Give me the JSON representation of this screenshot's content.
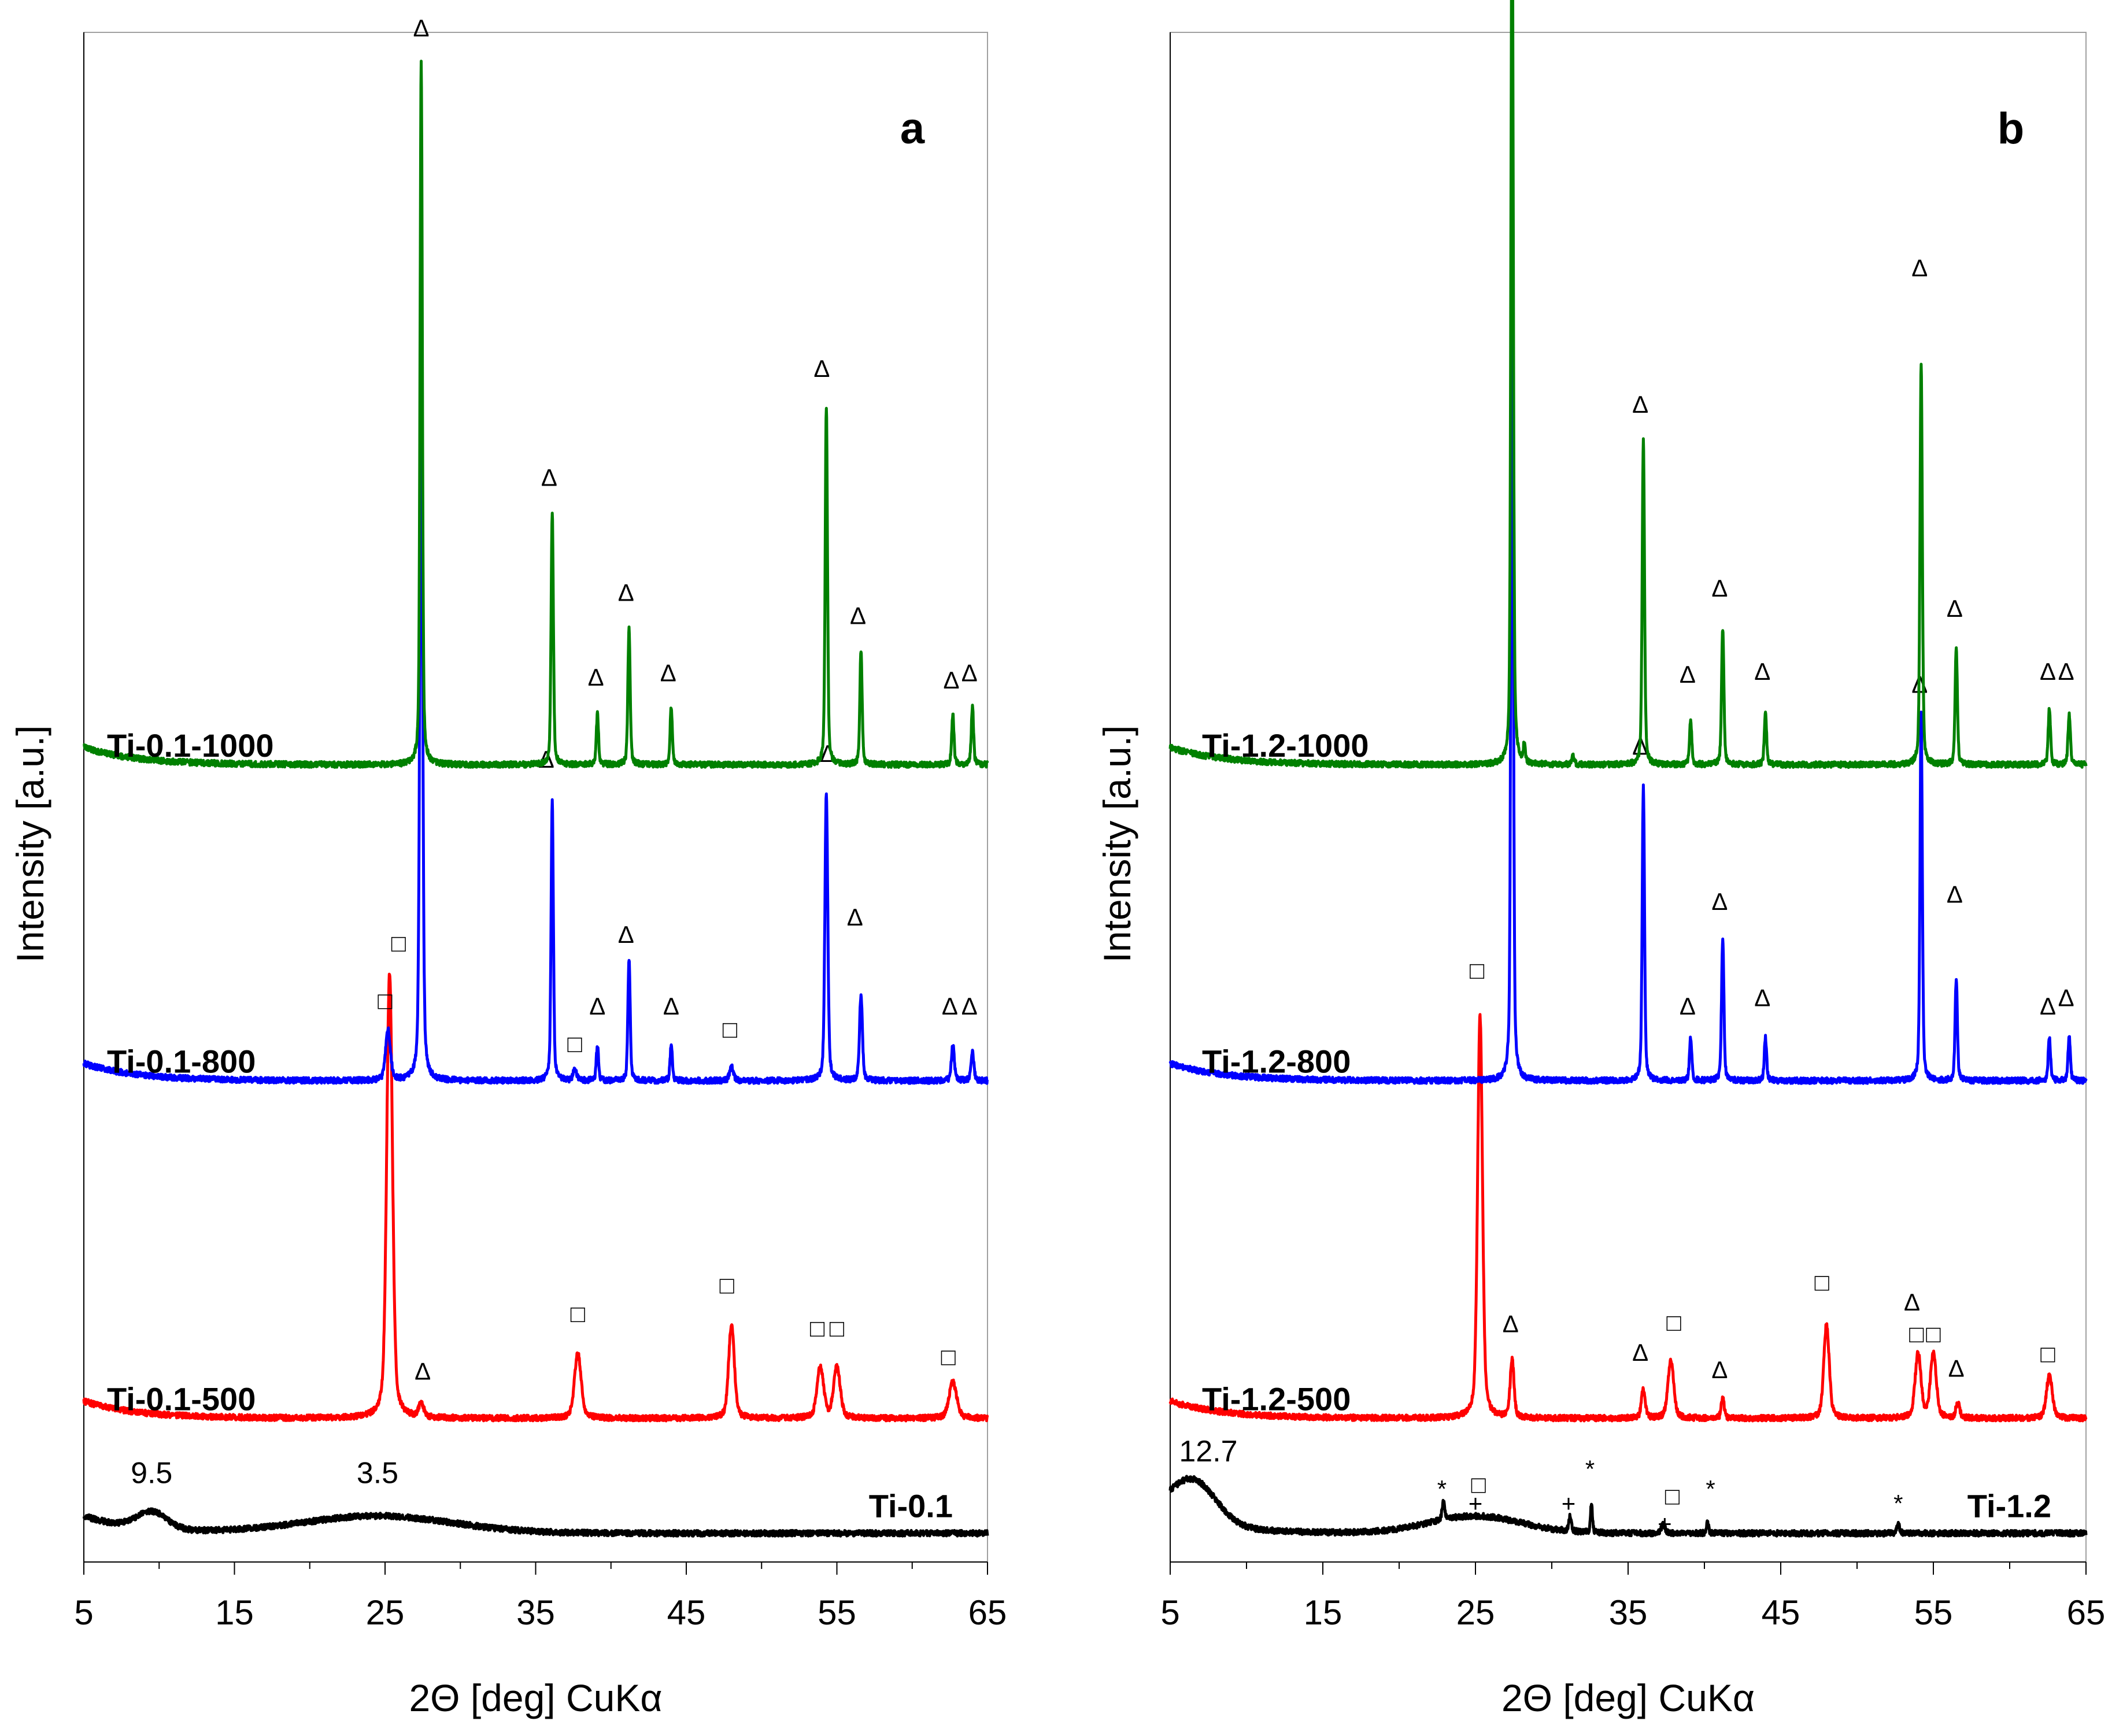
{
  "figure": {
    "description_labels": {
      "y_axis_title": "Intensity [a.u.]",
      "x_axis_title": "2Θ [deg] CuKα"
    }
  },
  "chart_data": [
    {
      "type": "line",
      "panel": "a",
      "xlabel": "2Θ [deg] CuKα",
      "ylabel": "Intensity [a.u.]",
      "xlim": [
        5,
        65
      ],
      "xticks": [
        "5",
        "15",
        "25",
        "35",
        "45",
        "55",
        "65"
      ],
      "series": [
        {
          "name": "Ti-0.1",
          "color": "#000000",
          "baseline": 0.02,
          "humps": [
            [
              9.5,
              0.012,
              1.0
            ],
            [
              24.5,
              0.012,
              5.0
            ]
          ],
          "peaks": [],
          "annotations": [
            {
              "text": "9.5",
              "x": 9.5,
              "y": 0.055
            },
            {
              "text": "3.5",
              "x": 24.5,
              "y": 0.055
            }
          ],
          "markers": []
        },
        {
          "name": "Ti-0.1-500",
          "color": "#ff0000",
          "baseline": 0.1,
          "humps": [],
          "peaks": [
            [
              25.3,
              0.31,
              0.3
            ],
            [
              27.4,
              0.01,
              0.25
            ],
            [
              37.8,
              0.045,
              0.35
            ],
            [
              48.0,
              0.065,
              0.3
            ],
            [
              53.9,
              0.035,
              0.35
            ],
            [
              55.0,
              0.035,
              0.35
            ],
            [
              62.7,
              0.025,
              0.4
            ]
          ],
          "markers": [
            {
              "symbol": "□",
              "x": 25.9,
              "y": 0.425
            },
            {
              "symbol": "Δ",
              "x": 27.5,
              "y": 0.127
            },
            {
              "symbol": "□",
              "x": 37.8,
              "y": 0.167
            },
            {
              "symbol": "□",
              "x": 47.7,
              "y": 0.187
            },
            {
              "symbol": "□",
              "x": 53.7,
              "y": 0.157
            },
            {
              "symbol": "□",
              "x": 55.0,
              "y": 0.157
            },
            {
              "symbol": "□",
              "x": 62.4,
              "y": 0.137
            }
          ]
        },
        {
          "name": "Ti-0.1-800",
          "color": "#0000ff",
          "baseline": 0.335,
          "humps": [],
          "peaks": [
            [
              25.2,
              0.035,
              0.25
            ],
            [
              27.4,
              0.5,
              0.15
            ],
            [
              36.1,
              0.195,
              0.12
            ],
            [
              37.6,
              0.007,
              0.2
            ],
            [
              39.1,
              0.024,
              0.12
            ],
            [
              41.2,
              0.085,
              0.12
            ],
            [
              44.0,
              0.025,
              0.12
            ],
            [
              48.0,
              0.01,
              0.2
            ],
            [
              54.3,
              0.2,
              0.15
            ],
            [
              56.6,
              0.06,
              0.15
            ],
            [
              62.7,
              0.025,
              0.15
            ],
            [
              64.0,
              0.02,
              0.15
            ]
          ],
          "markers": [
            {
              "symbol": "□",
              "x": 25.0,
              "y": 0.385
            },
            {
              "symbol": "Δ",
              "x": 35.7,
              "y": 0.553
            },
            {
              "symbol": "□",
              "x": 37.6,
              "y": 0.355
            },
            {
              "symbol": "Δ",
              "x": 39.1,
              "y": 0.381
            },
            {
              "symbol": "Δ",
              "x": 41.0,
              "y": 0.431
            },
            {
              "symbol": "Δ",
              "x": 44.0,
              "y": 0.381
            },
            {
              "symbol": "□",
              "x": 47.9,
              "y": 0.365
            },
            {
              "symbol": "Δ",
              "x": 54.4,
              "y": 0.557
            },
            {
              "symbol": "Δ",
              "x": 56.2,
              "y": 0.443
            },
            {
              "symbol": "Δ",
              "x": 62.5,
              "y": 0.381
            },
            {
              "symbol": "Δ",
              "x": 63.8,
              "y": 0.381
            }
          ]
        },
        {
          "name": "Ti-0.1-1000",
          "color": "#008000",
          "baseline": 0.555,
          "humps": [],
          "peaks": [
            [
              27.4,
              0.49,
              0.12
            ],
            [
              36.1,
              0.175,
              0.12
            ],
            [
              39.1,
              0.035,
              0.12
            ],
            [
              41.2,
              0.095,
              0.12
            ],
            [
              44.0,
              0.04,
              0.12
            ],
            [
              54.3,
              0.25,
              0.12
            ],
            [
              56.6,
              0.08,
              0.12
            ],
            [
              62.7,
              0.035,
              0.12
            ],
            [
              64.0,
              0.04,
              0.12
            ]
          ],
          "markers": [
            {
              "symbol": "Δ",
              "x": 27.4,
              "y": 1.062
            },
            {
              "symbol": "Δ",
              "x": 35.9,
              "y": 0.749
            },
            {
              "symbol": "Δ",
              "x": 39.0,
              "y": 0.61
            },
            {
              "symbol": "Δ",
              "x": 41.0,
              "y": 0.669
            },
            {
              "symbol": "Δ",
              "x": 43.8,
              "y": 0.613
            },
            {
              "symbol": "Δ",
              "x": 54.0,
              "y": 0.825
            },
            {
              "symbol": "Δ",
              "x": 56.4,
              "y": 0.653
            },
            {
              "symbol": "Δ",
              "x": 62.6,
              "y": 0.608
            },
            {
              "symbol": "Δ",
              "x": 63.8,
              "y": 0.613
            }
          ]
        }
      ]
    },
    {
      "type": "line",
      "panel": "b",
      "xlabel": "2Θ [deg] CuKα",
      "ylabel": "Intensity [a.u.]",
      "xlim": [
        5,
        65
      ],
      "xticks": [
        "5",
        "15",
        "25",
        "35",
        "45",
        "55",
        "65"
      ],
      "series": [
        {
          "name": "Ti-1.2",
          "color": "#000000",
          "baseline": 0.02,
          "humps": [
            [
              6.5,
              0.03,
              1.5
            ],
            [
              25.0,
              0.012,
              3.0
            ]
          ],
          "peaks": [
            [
              22.9,
              0.012,
              0.15
            ],
            [
              31.2,
              0.01,
              0.15
            ],
            [
              32.6,
              0.02,
              0.1
            ],
            [
              37.3,
              0.006,
              0.2
            ],
            [
              40.2,
              0.008,
              0.12
            ],
            [
              52.7,
              0.006,
              0.15
            ]
          ],
          "annotations": [
            {
              "text": "12.7",
              "x": 7.5,
              "y": 0.07
            }
          ],
          "markers": [
            {
              "symbol": "*",
              "x": 22.8,
              "y": 0.045
            },
            {
              "symbol": "+",
              "x": 25.0,
              "y": 0.035
            },
            {
              "symbol": "□",
              "x": 25.2,
              "y": 0.048
            },
            {
              "symbol": "+",
              "x": 31.1,
              "y": 0.035
            },
            {
              "symbol": "*",
              "x": 32.5,
              "y": 0.059
            },
            {
              "symbol": "+",
              "x": 37.4,
              "y": 0.021
            },
            {
              "symbol": "□",
              "x": 37.9,
              "y": 0.04
            },
            {
              "symbol": "*",
              "x": 40.4,
              "y": 0.045
            },
            {
              "symbol": "*",
              "x": 52.7,
              "y": 0.035
            }
          ]
        },
        {
          "name": "Ti-1.2-500",
          "color": "#ff0000",
          "baseline": 0.1,
          "humps": [],
          "peaks": [
            [
              25.3,
              0.28,
              0.25
            ],
            [
              27.4,
              0.04,
              0.2
            ],
            [
              36.0,
              0.02,
              0.2
            ],
            [
              37.8,
              0.04,
              0.3
            ],
            [
              41.2,
              0.015,
              0.15
            ],
            [
              48.0,
              0.065,
              0.28
            ],
            [
              54.0,
              0.045,
              0.3
            ],
            [
              55.0,
              0.045,
              0.3
            ],
            [
              56.6,
              0.01,
              0.2
            ],
            [
              62.6,
              0.03,
              0.3
            ]
          ],
          "markers": [
            {
              "symbol": "□",
              "x": 25.1,
              "y": 0.406
            },
            {
              "symbol": "Δ",
              "x": 27.3,
              "y": 0.16
            },
            {
              "symbol": "Δ",
              "x": 35.8,
              "y": 0.14
            },
            {
              "symbol": "□",
              "x": 38.0,
              "y": 0.161
            },
            {
              "symbol": "Δ",
              "x": 41.0,
              "y": 0.128
            },
            {
              "symbol": "□",
              "x": 47.7,
              "y": 0.189
            },
            {
              "symbol": "Δ",
              "x": 53.6,
              "y": 0.175
            },
            {
              "symbol": "□",
              "x": 53.9,
              "y": 0.153
            },
            {
              "symbol": "□",
              "x": 55.0,
              "y": 0.153
            },
            {
              "symbol": "Δ",
              "x": 56.5,
              "y": 0.129
            },
            {
              "symbol": "□",
              "x": 62.5,
              "y": 0.139
            }
          ]
        },
        {
          "name": "Ti-1.2-800",
          "color": "#0000ff",
          "baseline": 0.335,
          "humps": [],
          "peaks": [
            [
              27.4,
              0.62,
              0.12
            ],
            [
              36.0,
              0.205,
              0.12
            ],
            [
              39.1,
              0.03,
              0.12
            ],
            [
              41.2,
              0.1,
              0.12
            ],
            [
              44.0,
              0.03,
              0.12
            ],
            [
              54.2,
              0.255,
              0.12
            ],
            [
              56.5,
              0.07,
              0.12
            ],
            [
              62.6,
              0.03,
              0.12
            ],
            [
              63.9,
              0.03,
              0.12
            ]
          ],
          "markers": [
            {
              "symbol": "Δ",
              "x": 35.8,
              "y": 0.562
            },
            {
              "symbol": "Δ",
              "x": 38.9,
              "y": 0.381
            },
            {
              "symbol": "Δ",
              "x": 41.0,
              "y": 0.454
            },
            {
              "symbol": "Δ",
              "x": 43.8,
              "y": 0.387
            },
            {
              "symbol": "Δ",
              "x": 54.1,
              "y": 0.605
            },
            {
              "symbol": "Δ",
              "x": 56.4,
              "y": 0.459
            },
            {
              "symbol": "Δ",
              "x": 62.5,
              "y": 0.381
            },
            {
              "symbol": "Δ",
              "x": 63.7,
              "y": 0.387
            }
          ]
        },
        {
          "name": "Ti-1.2-1000",
          "color": "#008000",
          "baseline": 0.555,
          "humps": [],
          "peaks": [
            [
              27.4,
              0.635,
              0.12
            ],
            [
              28.2,
              0.012,
              0.1
            ],
            [
              31.4,
              0.006,
              0.15
            ],
            [
              36.0,
              0.225,
              0.12
            ],
            [
              39.1,
              0.03,
              0.12
            ],
            [
              41.2,
              0.095,
              0.12
            ],
            [
              44.0,
              0.035,
              0.12
            ],
            [
              54.2,
              0.28,
              0.12
            ],
            [
              56.5,
              0.08,
              0.12
            ],
            [
              62.6,
              0.04,
              0.12
            ],
            [
              63.9,
              0.035,
              0.12
            ]
          ],
          "markers": [
            {
              "symbol": "Δ",
              "x": 27.3,
              "y": 1.1
            },
            {
              "symbol": "Δ",
              "x": 35.8,
              "y": 0.8
            },
            {
              "symbol": "Δ",
              "x": 38.9,
              "y": 0.612
            },
            {
              "symbol": "Δ",
              "x": 41.0,
              "y": 0.672
            },
            {
              "symbol": "Δ",
              "x": 43.8,
              "y": 0.614
            },
            {
              "symbol": "Δ",
              "x": 54.1,
              "y": 0.895
            },
            {
              "symbol": "Δ",
              "x": 56.4,
              "y": 0.658
            },
            {
              "symbol": "Δ",
              "x": 62.5,
              "y": 0.614
            },
            {
              "symbol": "Δ",
              "x": 63.7,
              "y": 0.614
            }
          ]
        }
      ]
    }
  ]
}
